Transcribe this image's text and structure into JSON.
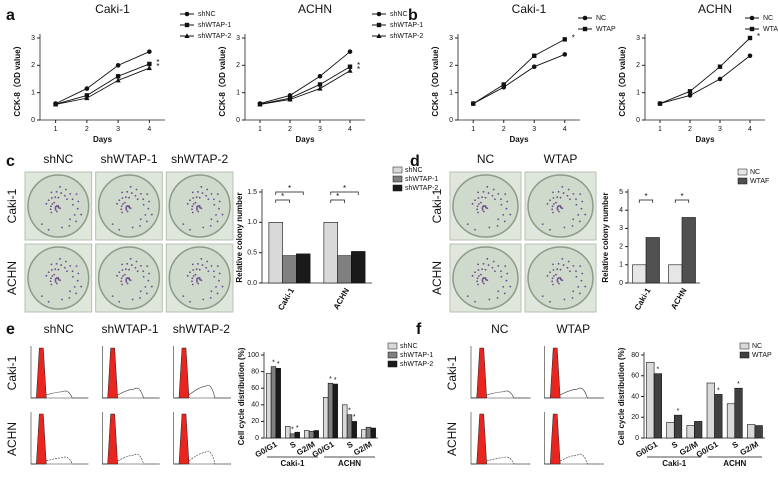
{
  "panel_labels": [
    "a",
    "b",
    "c",
    "d",
    "e",
    "f"
  ],
  "image_panels": [
    {
      "columns": [
        "shNC",
        "shWTAP-1",
        "shWTAP-2"
      ],
      "rows": [
        "Caki-1",
        "ACHN"
      ]
    },
    {
      "columns": [
        "NC",
        "WTAP"
      ],
      "rows": [
        "Caki-1",
        "ACHN"
      ]
    },
    {
      "columns": [
        "shNC",
        "shWTAP-1",
        "shWTAP-2"
      ],
      "rows": [
        "Caki-1",
        "ACHN"
      ]
    },
    {
      "columns": [
        "NC",
        "WTAP"
      ],
      "rows": [
        "Caki-1",
        "ACHN"
      ]
    }
  ],
  "chart_data": [
    {
      "type": "line",
      "title": "Caki-1",
      "x_label": "Days",
      "y_label": "CCK-8（OD value）",
      "annotation": "*",
      "x": [
        1,
        2,
        3,
        4
      ],
      "xlim": [
        0.5,
        4.5
      ],
      "xticks": [
        1,
        2,
        3,
        4
      ],
      "ylim": [
        0,
        3
      ],
      "yticks": [
        0,
        1,
        2,
        3
      ],
      "series": [
        {
          "name": "shNC",
          "color": "#111111",
          "marker": "circle",
          "values": [
            0.6,
            1.15,
            2.0,
            2.5
          ]
        },
        {
          "name": "shWTAP-1",
          "color": "#111111",
          "marker": "square",
          "values": [
            0.58,
            0.9,
            1.6,
            2.05
          ]
        },
        {
          "name": "shWTAP-2",
          "color": "#111111",
          "marker": "triangle",
          "values": [
            0.57,
            0.8,
            1.45,
            1.9
          ]
        }
      ]
    },
    {
      "type": "line",
      "title": "ACHN",
      "x_label": "Days",
      "y_label": "CCK-8（OD value）",
      "annotation": "*",
      "x": [
        1,
        2,
        3,
        4
      ],
      "xlim": [
        0.5,
        4.5
      ],
      "xticks": [
        1,
        2,
        3,
        4
      ],
      "ylim": [
        0,
        3
      ],
      "yticks": [
        0,
        1,
        2,
        3
      ],
      "series": [
        {
          "name": "shNC",
          "color": "#111111",
          "marker": "circle",
          "values": [
            0.6,
            0.9,
            1.6,
            2.5
          ]
        },
        {
          "name": "shWTAP-1",
          "color": "#111111",
          "marker": "square",
          "values": [
            0.58,
            0.8,
            1.3,
            1.95
          ]
        },
        {
          "name": "shWTAP-2",
          "color": "#111111",
          "marker": "triangle",
          "values": [
            0.57,
            0.75,
            1.15,
            1.8
          ]
        }
      ]
    },
    {
      "type": "line",
      "title": "Caki-1",
      "x_label": "Days",
      "y_label": "CCK-8（OD value）",
      "annotation": "*",
      "x": [
        1,
        2,
        3,
        4
      ],
      "xlim": [
        0.5,
        4.5
      ],
      "xticks": [
        1,
        2,
        3,
        4
      ],
      "ylim": [
        0,
        3
      ],
      "yticks": [
        0,
        1,
        2,
        3
      ],
      "series": [
        {
          "name": "NC",
          "color": "#111111",
          "marker": "circle",
          "values": [
            0.6,
            1.2,
            1.95,
            2.4
          ]
        },
        {
          "name": "WTAP",
          "color": "#111111",
          "marker": "square",
          "values": [
            0.6,
            1.3,
            2.35,
            2.95
          ]
        }
      ]
    },
    {
      "type": "line",
      "title": "ACHN",
      "x_label": "Days",
      "y_label": "CCK-8（OD value）",
      "annotation": "*",
      "x": [
        1,
        2,
        3,
        4
      ],
      "xlim": [
        0.5,
        4.5
      ],
      "xticks": [
        1,
        2,
        3,
        4
      ],
      "ylim": [
        0,
        3
      ],
      "yticks": [
        0,
        1,
        2,
        3
      ],
      "series": [
        {
          "name": "NC",
          "color": "#111111",
          "marker": "circle",
          "values": [
            0.6,
            0.9,
            1.5,
            2.35
          ]
        },
        {
          "name": "WTAP",
          "color": "#111111",
          "marker": "square",
          "values": [
            0.6,
            1.05,
            1.95,
            3.0
          ]
        }
      ]
    },
    {
      "type": "bar",
      "y_label": "Relative colony number",
      "annotation": "*",
      "categories": [
        "Caki-1",
        "ACHN"
      ],
      "ylim": [
        0,
        1.5
      ],
      "yticks": [
        {
          "value": 0,
          "label": "0.0"
        },
        0.5,
        {
          "value": 1,
          "label": "1.0"
        },
        1.5
      ],
      "series": [
        {
          "name": "shNC",
          "color": "#d9d9d9",
          "values": [
            1,
            1
          ]
        },
        {
          "name": "shWTAP-1",
          "color": "#808080",
          "values": [
            0.45,
            0.45
          ]
        },
        {
          "name": "shWTAP-2",
          "color": "#1a1a1a",
          "values": [
            0.48,
            0.52
          ]
        }
      ]
    },
    {
      "type": "bar",
      "y_label": "Relative colony number",
      "annotation": "*",
      "categories": [
        "Caki-1",
        "ACHN"
      ],
      "ylim": [
        0,
        5
      ],
      "yticks": [
        0,
        1,
        2,
        3,
        4,
        5
      ],
      "series": [
        {
          "name": "NC",
          "color": "#e6e6e6",
          "values": [
            1,
            1
          ]
        },
        {
          "name": "WTAF",
          "color": "#505050",
          "values": [
            2.5,
            3.6
          ]
        }
      ]
    },
    {
      "type": "bar",
      "y_label": "Cell cycle distribution (%)",
      "annotation": "*",
      "categories": [
        "G0/G1",
        "S",
        "G2/M",
        "G0/G1",
        "S",
        "G2/M"
      ],
      "groups": [
        "Caki-1",
        "ACHN"
      ],
      "ylim": [
        0,
        100
      ],
      "yticks": [
        0,
        20,
        40,
        60,
        80,
        100
      ],
      "series": [
        {
          "name": "shNC",
          "color": "#d9d9d9",
          "values": [
            78,
            14,
            9,
            49,
            40,
            10
          ]
        },
        {
          "name": "shWTAP-1",
          "color": "#808080",
          "values": [
            86,
            5,
            8,
            66,
            28,
            13
          ]
        },
        {
          "name": "shWTAP-2",
          "color": "#1a1a1a",
          "values": [
            84,
            7,
            9,
            65,
            20,
            12
          ]
        }
      ]
    },
    {
      "type": "bar",
      "y_label": "Cell cycle distribution (%)",
      "annotation": "*",
      "categories": [
        "G0/G1",
        "S",
        "G2/M",
        "G0/G1",
        "S",
        "G2/M"
      ],
      "groups": [
        "Caki-1",
        "ACHN"
      ],
      "ylim": [
        0,
        80
      ],
      "yticks": [
        0,
        20,
        40,
        60,
        80
      ],
      "series": [
        {
          "name": "NC",
          "color": "#d9d9d9",
          "values": [
            73,
            15,
            12,
            53,
            33,
            13
          ]
        },
        {
          "name": "WTAP",
          "color": "#404040",
          "values": [
            62,
            22,
            16,
            42,
            48,
            12
          ]
        }
      ]
    }
  ]
}
